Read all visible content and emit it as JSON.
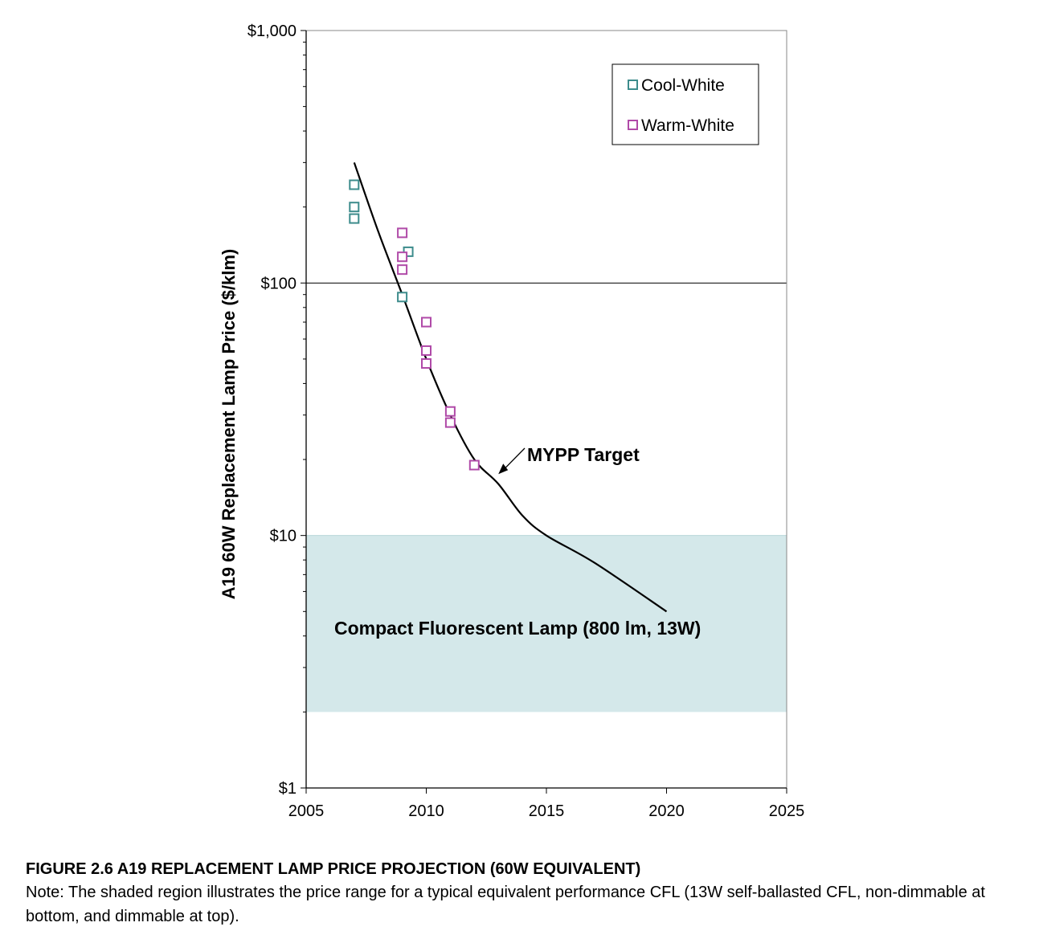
{
  "chart_data": {
    "type": "scatter",
    "y_scale": "log",
    "xlim": [
      2005,
      2025
    ],
    "ylim": [
      1,
      1000
    ],
    "x_ticks": [
      {
        "value": 2005,
        "label": "2005"
      },
      {
        "value": 2010,
        "label": "2010"
      },
      {
        "value": 2015,
        "label": "2015"
      },
      {
        "value": 2020,
        "label": "2020"
      },
      {
        "value": 2025,
        "label": "2025"
      }
    ],
    "y_ticks": [
      {
        "value": 1,
        "label": "$1"
      },
      {
        "value": 10,
        "label": "$10"
      },
      {
        "value": 100,
        "label": "$100"
      },
      {
        "value": 1000,
        "label": "$1,000"
      }
    ],
    "ylabel": "A19 60W Replacement  Lamp Price ($/klm)",
    "xlabel": "",
    "grid": "major horizontal at $100",
    "legend_position": "top-right",
    "series": [
      {
        "name": "Cool-White",
        "color": "#3d8c8c",
        "marker": "open-square",
        "points": [
          {
            "x": 2007,
            "y": 245
          },
          {
            "x": 2007,
            "y": 200
          },
          {
            "x": 2007,
            "y": 180
          },
          {
            "x": 2009.25,
            "y": 133
          },
          {
            "x": 2009,
            "y": 88
          }
        ]
      },
      {
        "name": "Warm-White",
        "color": "#b04aa8",
        "marker": "open-square",
        "points": [
          {
            "x": 2009,
            "y": 158
          },
          {
            "x": 2009,
            "y": 127
          },
          {
            "x": 2009,
            "y": 113
          },
          {
            "x": 2010,
            "y": 70
          },
          {
            "x": 2010,
            "y": 54
          },
          {
            "x": 2010,
            "y": 48
          },
          {
            "x": 2011,
            "y": 31
          },
          {
            "x": 2011,
            "y": 28
          },
          {
            "x": 2012,
            "y": 19
          }
        ]
      }
    ],
    "target_line": {
      "label": "MYPP  Target",
      "color": "#000000",
      "points": [
        {
          "x": 2007,
          "y": 300
        },
        {
          "x": 2008,
          "y": 160
        },
        {
          "x": 2009,
          "y": 90
        },
        {
          "x": 2010,
          "y": 50
        },
        {
          "x": 2011,
          "y": 30
        },
        {
          "x": 2012,
          "y": 20
        },
        {
          "x": 2013,
          "y": 16
        },
        {
          "x": 2014,
          "y": 12
        },
        {
          "x": 2015,
          "y": 10
        },
        {
          "x": 2017,
          "y": 7.8
        },
        {
          "x": 2020,
          "y": 5
        }
      ]
    },
    "shaded_region": {
      "label": "Compact Fluorescent Lamp (800 lm, 13W)",
      "y_min": 2,
      "y_max": 10,
      "color": "#d4e8ea"
    }
  },
  "caption": {
    "title": "FIGURE 2.6 A19 REPLACEMENT LAMP PRICE PROJECTION (60W EQUIVALENT)",
    "note": "Note: The shaded region illustrates the price range for a typical equivalent performance CFL (13W self-ballasted CFL, non-dimmable at bottom, and dimmable at top)."
  }
}
